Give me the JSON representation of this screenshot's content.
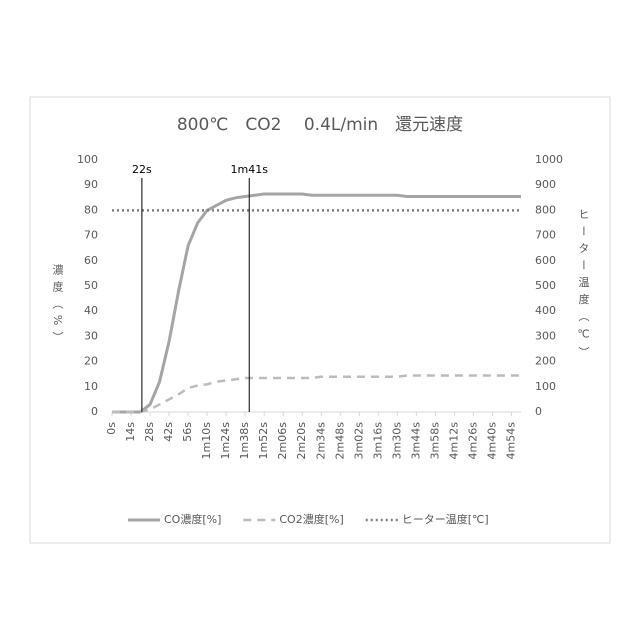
{
  "chart_data": {
    "type": "line",
    "title": "800℃　CO2　 0.4L/min　還元速度",
    "y_label": "濃度（%）",
    "y2_label": "ヒーター温度（℃）",
    "x": [
      0,
      7,
      14,
      21,
      28,
      35,
      42,
      49,
      56,
      63,
      70,
      77,
      84,
      91,
      98,
      105,
      112,
      119,
      126,
      133,
      140,
      147,
      154,
      161,
      168,
      175,
      182,
      189,
      196,
      203,
      210,
      217,
      224,
      231,
      238,
      245,
      252,
      259,
      266,
      273,
      280,
      287,
      294,
      301
    ],
    "xlim": [
      0,
      301
    ],
    "xticks": [
      {
        "value": 0,
        "label": "0s"
      },
      {
        "value": 14,
        "label": "14s"
      },
      {
        "value": 28,
        "label": "28s"
      },
      {
        "value": 42,
        "label": "42s"
      },
      {
        "value": 56,
        "label": "56s"
      },
      {
        "value": 70,
        "label": "1m10s"
      },
      {
        "value": 84,
        "label": "1m24s"
      },
      {
        "value": 98,
        "label": "1m38s"
      },
      {
        "value": 112,
        "label": "1m52s"
      },
      {
        "value": 126,
        "label": "2m06s"
      },
      {
        "value": 140,
        "label": "2m20s"
      },
      {
        "value": 154,
        "label": "2m34s"
      },
      {
        "value": 168,
        "label": "2m48s"
      },
      {
        "value": 182,
        "label": "3m02s"
      },
      {
        "value": 196,
        "label": "3m16s"
      },
      {
        "value": 210,
        "label": "3m30s"
      },
      {
        "value": 224,
        "label": "3m44s"
      },
      {
        "value": 238,
        "label": "3m58s"
      },
      {
        "value": 252,
        "label": "4m12s"
      },
      {
        "value": 266,
        "label": "4m26s"
      },
      {
        "value": 280,
        "label": "4m40s"
      },
      {
        "value": 294,
        "label": "4m54s"
      }
    ],
    "ylim": [
      0,
      100
    ],
    "yticks": [
      0,
      10,
      20,
      30,
      40,
      50,
      60,
      70,
      80,
      90,
      100
    ],
    "y2lim": [
      0,
      1000
    ],
    "y2ticks": [
      0,
      100,
      200,
      300,
      400,
      500,
      600,
      700,
      800,
      900,
      1000
    ],
    "series": [
      {
        "name": "CO濃度[%]",
        "color": "#a5a5a5",
        "dash": "solid",
        "values": [
          0,
          0,
          0,
          0,
          3,
          12,
          28,
          48,
          66,
          75,
          80,
          82,
          84,
          85,
          85.5,
          86,
          86.5,
          86.5,
          86.5,
          86.5,
          86.5,
          86,
          86,
          86,
          86,
          86,
          86,
          86,
          86,
          86,
          86,
          85.5,
          85.5,
          85.5,
          85.5,
          85.5,
          85.5,
          85.5,
          85.5,
          85.5,
          85.5,
          85.5,
          85.5,
          85.5
        ]
      },
      {
        "name": "CO2濃度[%]",
        "color": "#bcbcbc",
        "dash": "dashed",
        "values": [
          0,
          0,
          0,
          0,
          1,
          3,
          5,
          7,
          9.5,
          10.5,
          11,
          12,
          12.5,
          13,
          13.5,
          13.5,
          13.5,
          13.5,
          13.5,
          13.5,
          13.5,
          13.5,
          14,
          14,
          14,
          14,
          14,
          14,
          14,
          14,
          14,
          14.5,
          14.5,
          14.5,
          14.5,
          14.5,
          14.5,
          14.5,
          14.5,
          14.5,
          14.5,
          14.5,
          14.5,
          14.5
        ]
      },
      {
        "name": "ヒーター温度[℃]",
        "color": "#7f7f7f",
        "dash": "dotted",
        "axis": "y2",
        "values": [
          800,
          800,
          800,
          800,
          800,
          800,
          800,
          800,
          800,
          800,
          800,
          800,
          800,
          800,
          800,
          800,
          800,
          800,
          800,
          800,
          800,
          800,
          800,
          800,
          800,
          800,
          800,
          800,
          800,
          800,
          800,
          800,
          800,
          800,
          800,
          800,
          800,
          800,
          800,
          800,
          800,
          800,
          800,
          800
        ]
      }
    ],
    "annotations": [
      {
        "label": "22s",
        "x": 22
      },
      {
        "label": "1m41s",
        "x": 101
      }
    ],
    "legend": "bottom"
  }
}
